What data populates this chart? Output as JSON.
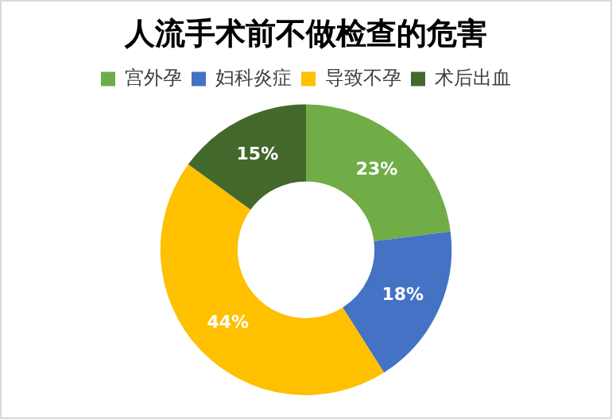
{
  "chart_data": {
    "type": "donut",
    "title": "人流手术前不做检查的危害",
    "categories": [
      "宫外孕",
      "妇科炎症",
      "导致不孕",
      "术后出血"
    ],
    "values": [
      23,
      18,
      44,
      15
    ],
    "colors": [
      "#70ad47",
      "#4472c4",
      "#ffc000",
      "#43682b"
    ],
    "value_labels": [
      "23%",
      "18%",
      "44%",
      "15%"
    ],
    "legend": "top"
  }
}
